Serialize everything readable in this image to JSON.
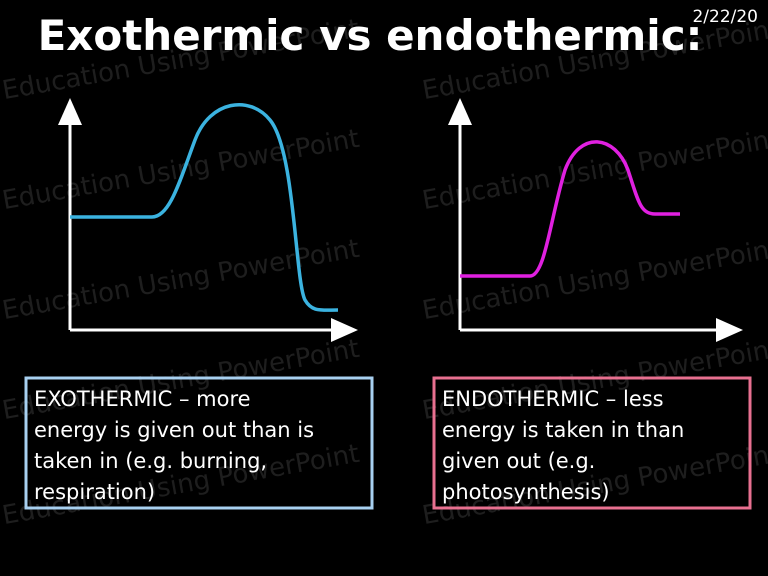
{
  "title": "Exothermic vs endothermic:",
  "date": "2/22/20",
  "watermark": "Education Using PowerPoint",
  "boxes": [
    {
      "lines": [
        "EXOTHERMIC – more",
        "energy is given out than is",
        "taken in (e.g. burning,",
        "respiration)"
      ]
    },
    {
      "lines": [
        "ENDOTHERMIC – less",
        "energy is taken in than",
        "given out (e.g.",
        "photosynthesis)"
      ]
    }
  ]
}
